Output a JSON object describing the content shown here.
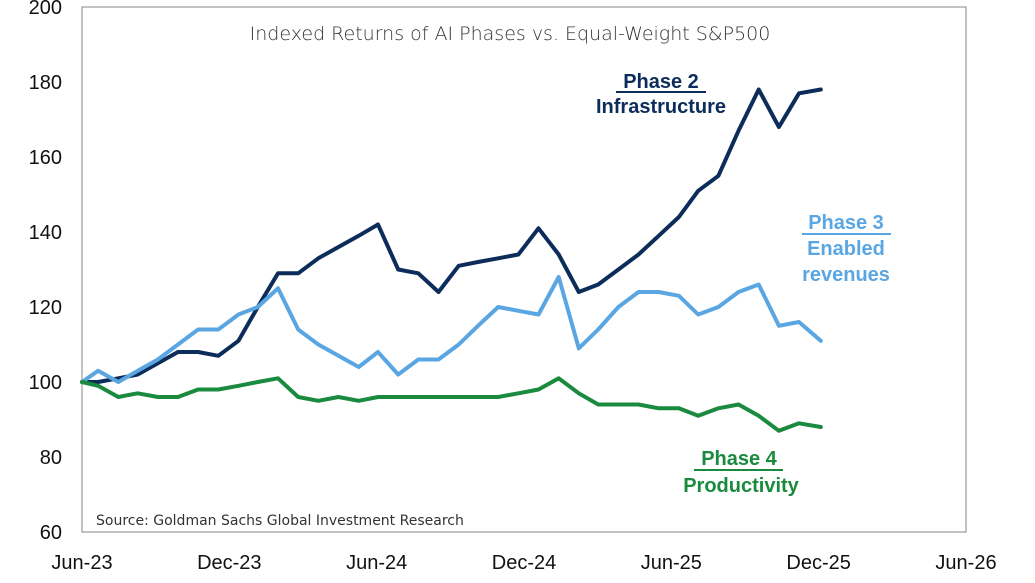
{
  "chart_data": {
    "type": "line",
    "title": "Indexed Returns of AI Phases vs. Equal-Weight S&P500",
    "source": "Source: Goldman Sachs Global Investment Research",
    "xlabel": "",
    "ylabel": "",
    "xlim": [
      "2023-06-01",
      "2026-06-01"
    ],
    "ylim": [
      60,
      200
    ],
    "x_ticks": [
      "Jun-23",
      "Dec-23",
      "Jun-24",
      "Dec-24",
      "Jun-25",
      "Dec-25",
      "Jun-26"
    ],
    "y_ticks": [
      60,
      80,
      100,
      120,
      140,
      160,
      180,
      200
    ],
    "grid": false,
    "x": [
      "2023-06-01",
      "2023-06-21",
      "2023-07-16",
      "2023-08-09",
      "2023-09-03",
      "2023-09-28",
      "2023-10-23",
      "2023-11-17",
      "2023-12-12",
      "2024-01-05",
      "2024-01-30",
      "2024-02-24",
      "2024-03-20",
      "2024-04-14",
      "2024-05-09",
      "2024-06-02",
      "2024-06-27",
      "2024-07-22",
      "2024-08-16",
      "2024-09-10",
      "2024-10-04",
      "2024-10-29",
      "2024-11-23",
      "2024-12-18",
      "2025-01-12",
      "2025-02-06",
      "2025-03-02",
      "2025-03-27",
      "2025-04-21",
      "2025-05-16",
      "2025-06-10",
      "2025-07-04",
      "2025-07-29",
      "2025-08-23",
      "2025-09-17",
      "2025-10-12",
      "2025-11-06",
      "2025-12-03"
    ],
    "series": [
      {
        "name": "Phase 2",
        "label_sub": "Infrastructure",
        "color": "#0c2c5a",
        "values": [
          100,
          100,
          101,
          102,
          105,
          108,
          108,
          107,
          111,
          120,
          129,
          129,
          133,
          136,
          139,
          142,
          130,
          129,
          124,
          131,
          132,
          133,
          134,
          141,
          134,
          124,
          126,
          130,
          134,
          139,
          144,
          151,
          155,
          167,
          178,
          168,
          177,
          178
        ]
      },
      {
        "name": "Phase 3",
        "label_sub": "Enabled revenues",
        "color": "#5aa6e2",
        "values": [
          100,
          103,
          100,
          103,
          106,
          110,
          114,
          114,
          118,
          120,
          125,
          114,
          110,
          107,
          104,
          108,
          102,
          106,
          106,
          110,
          115,
          120,
          119,
          118,
          128,
          109,
          114,
          120,
          124,
          124,
          123,
          118,
          120,
          124,
          126,
          115,
          116,
          111
        ]
      },
      {
        "name": "Phase 4",
        "label_sub": "Productivity",
        "color": "#1a8a3e",
        "values": [
          100,
          99,
          96,
          97,
          96,
          96,
          98,
          98,
          99,
          100,
          101,
          96,
          95,
          96,
          95,
          96,
          96,
          96,
          96,
          96,
          96,
          96,
          97,
          98,
          101,
          97,
          94,
          94,
          94,
          93,
          93,
          91,
          93,
          94,
          91,
          87,
          89,
          88
        ]
      }
    ]
  }
}
